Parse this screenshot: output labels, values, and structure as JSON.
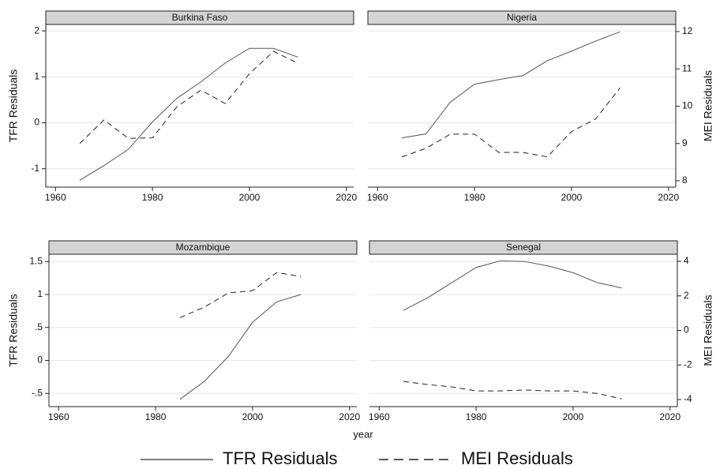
{
  "chart_data": [
    {
      "type": "line",
      "title": "Burkina Faso",
      "ylabel": "TFR Residuals",
      "x": [
        1965,
        1970,
        1975,
        1980,
        1985,
        1990,
        1995,
        2000,
        2005,
        2010
      ],
      "series": [
        {
          "name": "TFR Residuals",
          "color": "#555555",
          "line_style": "solid",
          "axis": "y",
          "values": [
            -1.25,
            -0.93,
            -0.58,
            0.02,
            0.53,
            0.89,
            1.3,
            1.62,
            1.62,
            1.43
          ]
        },
        {
          "name": "MEI Residuals",
          "color": "#222222",
          "line_style": "dashed",
          "axis": "y2",
          "values": [
            9.0,
            9.63,
            9.14,
            9.15,
            9.98,
            10.43,
            10.07,
            10.87,
            11.47,
            11.15
          ]
        }
      ],
      "xlim": [
        1958,
        2021.5
      ],
      "xticks": [
        1960,
        1980,
        2000,
        2020
      ],
      "ylim": [
        -1.4,
        2.14
      ],
      "yticks": [
        -1,
        0,
        1,
        2
      ],
      "y2lim": [
        7.83,
        12.19
      ],
      "grid": true
    },
    {
      "type": "line",
      "title": "Nigeria",
      "y2label": "MEI Residuals",
      "x": [
        1965,
        1970,
        1975,
        1980,
        1985,
        1990,
        1995,
        2000,
        2005,
        2010
      ],
      "series": [
        {
          "name": "TFR Residuals",
          "color": "#555555",
          "line_style": "solid",
          "axis": "y",
          "values": [
            -0.33,
            -0.24,
            0.45,
            0.84,
            0.94,
            1.03,
            1.35,
            1.56,
            1.78,
            1.98
          ]
        },
        {
          "name": "MEI Residuals",
          "color": "#222222",
          "line_style": "dashed",
          "axis": "y2",
          "values": [
            8.64,
            8.87,
            9.25,
            9.25,
            8.76,
            8.76,
            8.64,
            9.32,
            9.66,
            10.49
          ]
        }
      ],
      "xlim": [
        1958,
        2021.5
      ],
      "xticks": [
        1960,
        1980,
        2000,
        2020
      ],
      "ylim": [
        -1.4,
        2.14
      ],
      "y2lim": [
        7.83,
        12.19
      ],
      "y2ticks": [
        8,
        9,
        10,
        11,
        12
      ],
      "grid": true
    },
    {
      "type": "line",
      "title": "Mozambique",
      "ylabel": "TFR Residuals",
      "xlabel": "year",
      "x": [
        1965,
        1970,
        1975,
        1980,
        1985,
        1990,
        1995,
        2000,
        2005,
        2010
      ],
      "series": [
        {
          "name": "TFR Residuals",
          "color": "#555555",
          "line_style": "solid",
          "axis": "y",
          "values": [
            null,
            null,
            null,
            null,
            -0.59,
            -0.32,
            0.06,
            0.58,
            0.89,
            1.0
          ]
        },
        {
          "name": "MEI Residuals",
          "color": "#222222",
          "line_style": "dashed",
          "axis": "y2",
          "values": [
            null,
            null,
            null,
            null,
            0.74,
            1.34,
            2.17,
            2.3,
            3.35,
            3.12
          ]
        }
      ],
      "xlim": [
        1958,
        2021.5
      ],
      "xticks": [
        1960,
        1980,
        2000,
        2020
      ],
      "ylim": [
        -0.7,
        1.61
      ],
      "yticks": [
        {
          "value": -0.5,
          "label": "-.5"
        },
        0,
        {
          "value": 0.5,
          "label": ".5"
        },
        1,
        1.5
      ],
      "y2lim": [
        -4.41,
        4.41
      ],
      "grid": true
    },
    {
      "type": "line",
      "title": "Senegal",
      "y2label": "MEI Residuals",
      "x": [
        1965,
        1970,
        1975,
        1980,
        1985,
        1990,
        1995,
        2000,
        2005,
        2010
      ],
      "series": [
        {
          "name": "TFR Residuals",
          "color": "#555555",
          "line_style": "solid",
          "axis": "y",
          "values": [
            0.76,
            0.95,
            1.18,
            1.41,
            1.51,
            1.5,
            1.43,
            1.33,
            1.18,
            1.1
          ]
        },
        {
          "name": "MEI Residuals",
          "color": "#222222",
          "line_style": "dashed",
          "axis": "y2",
          "values": [
            -2.95,
            -3.13,
            -3.27,
            -3.5,
            -3.5,
            -3.45,
            -3.5,
            -3.5,
            -3.65,
            -3.96
          ]
        }
      ],
      "xlim": [
        1958,
        2021.5
      ],
      "xticks": [
        1960,
        1980,
        2000,
        2020
      ],
      "ylim": [
        -0.7,
        1.61
      ],
      "y2lim": [
        -4.41,
        4.41
      ],
      "y2ticks": [
        -4,
        -2,
        0,
        2,
        4
      ],
      "grid": true
    }
  ]
}
